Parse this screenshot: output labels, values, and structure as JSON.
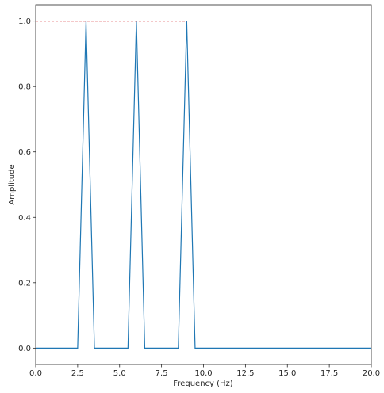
{
  "chart_data": {
    "type": "line",
    "title": "",
    "xlabel": "Frequency (Hz)",
    "ylabel": "Amplitude",
    "xlim": [
      0,
      20
    ],
    "ylim": [
      -0.05,
      1.05
    ],
    "grid": false,
    "xticks": [
      0,
      2.5,
      5,
      7.5,
      10,
      12.5,
      15,
      17.5,
      20
    ],
    "xtick_labels": [
      "0.0",
      "2.5",
      "5.0",
      "7.5",
      "10.0",
      "12.5",
      "15.0",
      "17.5",
      "20.0"
    ],
    "yticks": [
      0,
      0.2,
      0.4,
      0.6,
      0.8,
      1.0
    ],
    "ytick_labels": [
      "0.0",
      "0.2",
      "0.4",
      "0.6",
      "0.8",
      "1.0"
    ],
    "series": [
      {
        "color": "#1f77b4",
        "style": "solid",
        "x": [
          0,
          2.5,
          3,
          3.5,
          5.5,
          6,
          6.5,
          8.5,
          9,
          9.5,
          20
        ],
        "y": [
          0,
          0,
          1,
          0,
          0,
          1,
          0,
          0,
          1,
          0,
          0
        ]
      },
      {
        "color": "#d62728",
        "style": "dashed",
        "x": [
          0,
          9
        ],
        "y": [
          1,
          1
        ]
      }
    ]
  }
}
